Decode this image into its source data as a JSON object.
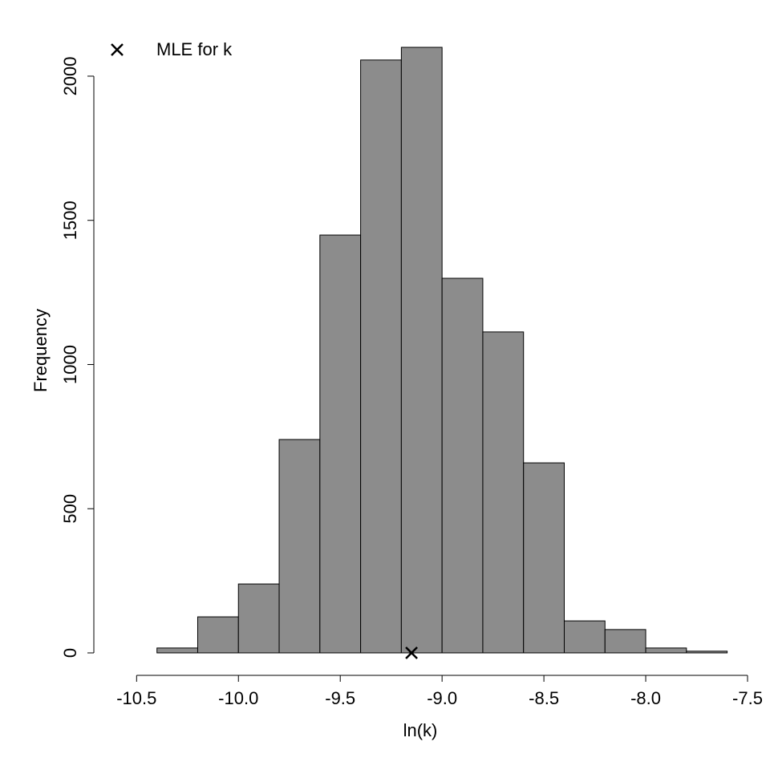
{
  "chart_data": {
    "type": "histogram",
    "xlabel": "ln(k)",
    "ylabel": "Frequency",
    "bins": [
      -10.6,
      -10.4,
      -10.2,
      -10.0,
      -9.8,
      -9.6,
      -9.4,
      -9.2,
      -9.0,
      -8.8,
      -8.6,
      -8.4,
      -8.2,
      -8.0,
      -7.8,
      -7.6
    ],
    "values": [
      0,
      17,
      125,
      239,
      740,
      1449,
      2056,
      2100,
      1299,
      1113,
      659,
      111,
      81,
      17,
      6
    ],
    "color": "#8c8c8c",
    "xlim": [
      -10.71,
      -7.5
    ],
    "ylim": [
      0,
      2100
    ],
    "xticks": [
      -10.5,
      {
        "value": -10.0,
        "label": "-10.0"
      },
      -9.5,
      {
        "value": -9.0,
        "label": "-9.0"
      },
      -8.5,
      {
        "value": -8.0,
        "label": "-8.0"
      },
      -7.5
    ],
    "yticks": [
      0,
      500,
      1000,
      1500,
      2000
    ],
    "marker": {
      "name": "MLE for k",
      "x": -9.15,
      "y": 0
    },
    "legend": "top-left"
  }
}
